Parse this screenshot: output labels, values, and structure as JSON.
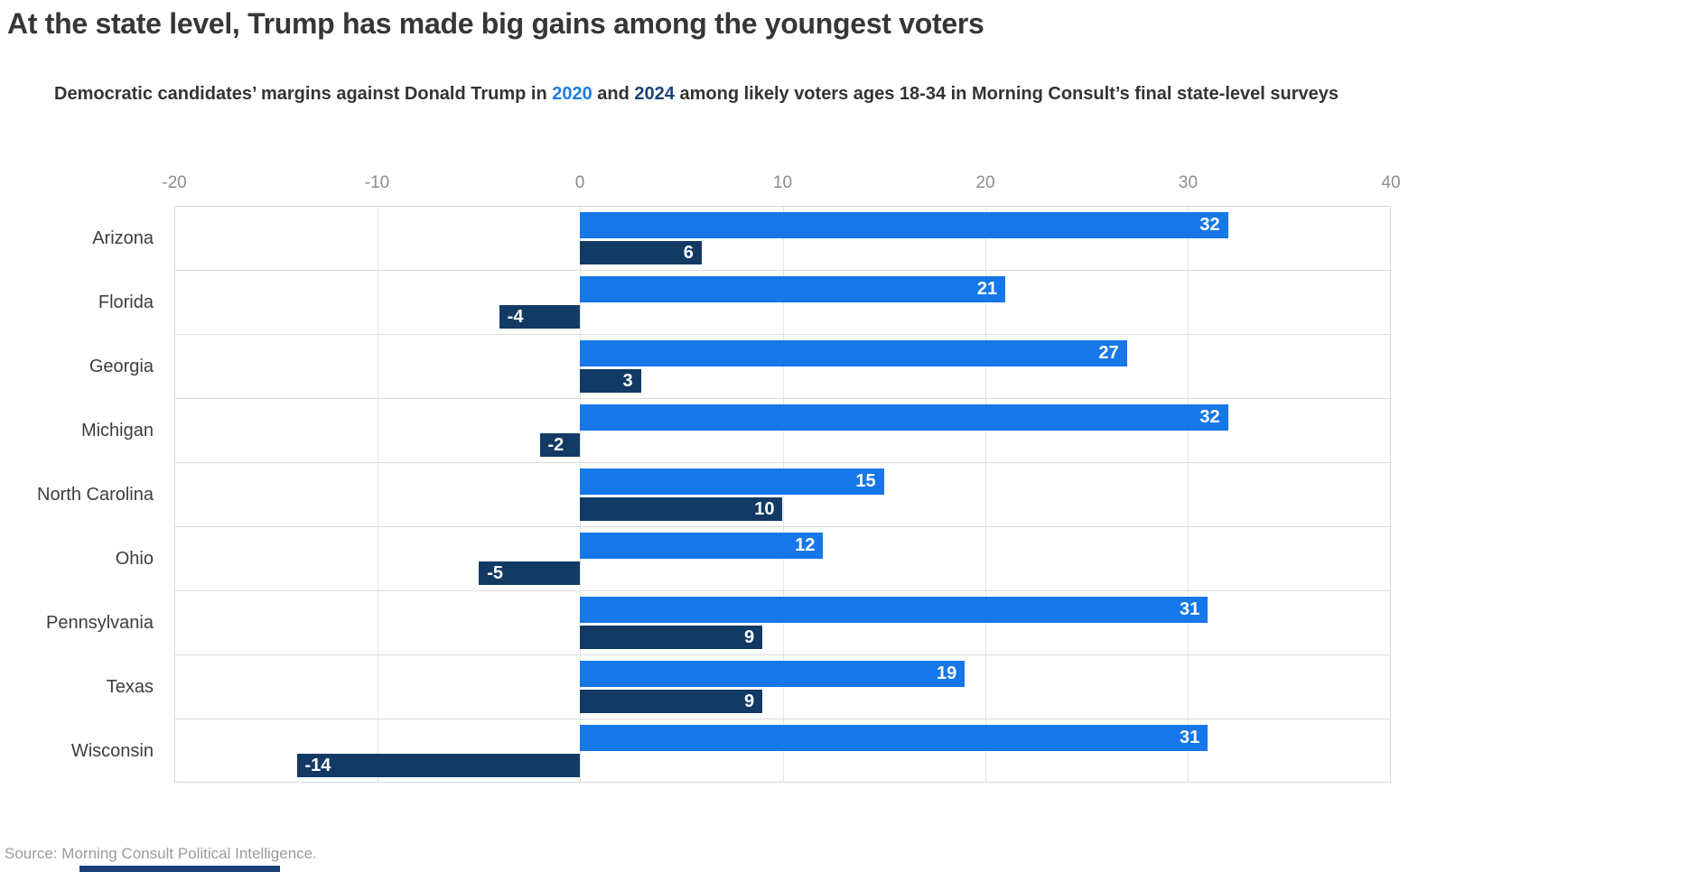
{
  "title": "At the state level, Trump has made big gains among the youngest voters",
  "subtitle": {
    "prefix": "Democratic candidates’ margins against Donald Trump in ",
    "year_2020": "2020",
    "middle": " and ",
    "year_2024": "2024",
    "suffix": " among likely voters ages 18-34 in Morning Consult’s final state-level surveys"
  },
  "source": "Source: Morning Consult Political Intelligence.",
  "colors": {
    "title_text": "#363636",
    "subtitle_text": "#333333",
    "subtitle_2020": "#1E7CE5",
    "subtitle_2024": "#1B4379",
    "bar_2020": "#1577E8",
    "bar_2024": "#123A64",
    "axis_text": "#8C8C8C",
    "gridline": "#E4E4E4",
    "source_text": "#9B9B9B",
    "brand_bar": "#1B4077"
  },
  "chart_data": {
    "type": "bar",
    "orientation": "horizontal",
    "title": "At the state level, Trump has made big gains among the youngest voters",
    "subtitle": "Democratic candidates’ margins against Donald Trump in 2020 and 2024 among likely voters ages 18-34 in Morning Consult’s final state-level surveys",
    "categories": [
      "Arizona",
      "Florida",
      "Georgia",
      "Michigan",
      "North Carolina",
      "Ohio",
      "Pennsylvania",
      "Texas",
      "Wisconsin"
    ],
    "series": [
      {
        "name": "2020",
        "color": "#1577E8",
        "values": [
          32,
          21,
          27,
          32,
          15,
          12,
          31,
          19,
          31
        ]
      },
      {
        "name": "2024",
        "color": "#123A64",
        "values": [
          6,
          -4,
          3,
          -2,
          10,
          -5,
          9,
          9,
          -14
        ]
      }
    ],
    "xlim": [
      -20,
      40
    ],
    "xticks": [
      -20,
      -10,
      0,
      10,
      20,
      30,
      40
    ],
    "grid": true,
    "value_labels": "inside-end",
    "legend": "none"
  }
}
